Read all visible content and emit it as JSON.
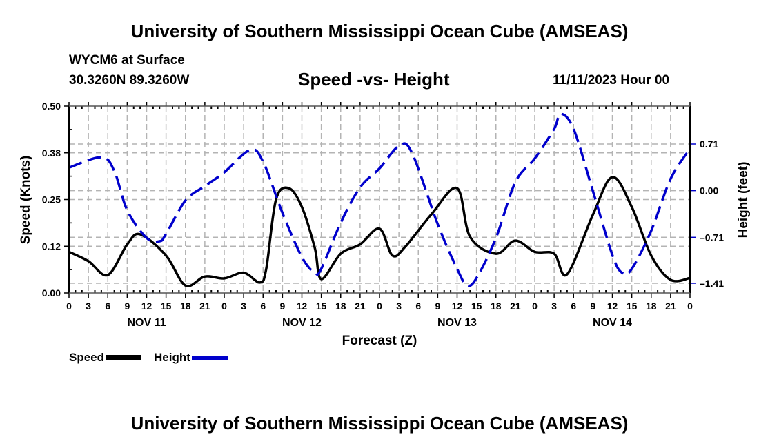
{
  "header": {
    "main_title": "University of Southern Mississippi Ocean Cube (AMSEAS)",
    "station": "WYCM6 at Surface",
    "coords": "30.3260N  89.3260W",
    "subtitle": "Speed -vs- Height",
    "datetime": "11/11/2023 Hour 00"
  },
  "footer": {
    "title": "University of Southern Mississippi Ocean Cube (AMSEAS)"
  },
  "legend": {
    "items": [
      {
        "label": "Speed",
        "color": "#000000",
        "style": "solid"
      },
      {
        "label": "Height",
        "color": "#0000cc",
        "style": "dashed"
      }
    ]
  },
  "chart_data": {
    "type": "line",
    "title": "Speed -vs- Height",
    "xlabel": "Forecast (Z)",
    "ylabel": "Speed (Knots)",
    "y2label": "Height (feet)",
    "xlim": [
      0,
      96
    ],
    "ylim": [
      0,
      0.5
    ],
    "y2lim": [
      -1.41,
      0.71
    ],
    "grid": true,
    "legend_position": "bottom-left",
    "x_tick_labels": [
      "0",
      "3",
      "6",
      "9",
      "12",
      "15",
      "18",
      "21",
      "0",
      "3",
      "6",
      "9",
      "12",
      "15",
      "18",
      "21",
      "0",
      "3",
      "6",
      "9",
      "12",
      "15",
      "18",
      "21",
      "0",
      "3",
      "6",
      "9",
      "12",
      "15",
      "18",
      "21",
      "0"
    ],
    "day_labels": [
      {
        "label": "NOV 11",
        "hour": 12
      },
      {
        "label": "NOV 12",
        "hour": 36
      },
      {
        "label": "NOV 13",
        "hour": 60
      },
      {
        "label": "NOV 14",
        "hour": 84
      }
    ],
    "y_tick_labels": [
      "0.00",
      "0.12",
      "0.25",
      "0.38",
      "0.50"
    ],
    "y_ticks": [
      0,
      0.125,
      0.25,
      0.375,
      0.5
    ],
    "y2_tick_labels": [
      "-1.41",
      "-0.71",
      "0.00",
      "0.71"
    ],
    "y2_ticks": [
      -1.41,
      -0.71,
      0.0,
      0.71
    ],
    "series": [
      {
        "name": "Speed",
        "axis": "left",
        "color": "#000000",
        "x": [
          0,
          3,
          6,
          9,
          11,
          15,
          18,
          21,
          24,
          27,
          29.5,
          30.5,
          32,
          34,
          36,
          38,
          39,
          42,
          45,
          48,
          50,
          52,
          56,
          60,
          62,
          66,
          69,
          72,
          75,
          77,
          81,
          84,
          87,
          90,
          93,
          96
        ],
        "values": [
          0.11,
          0.085,
          0.048,
          0.13,
          0.157,
          0.1,
          0.02,
          0.044,
          0.039,
          0.054,
          0.028,
          0.065,
          0.25,
          0.28,
          0.23,
          0.12,
          0.037,
          0.105,
          0.13,
          0.172,
          0.1,
          0.124,
          0.21,
          0.28,
          0.15,
          0.105,
          0.14,
          0.11,
          0.105,
          0.05,
          0.21,
          0.31,
          0.23,
          0.1,
          0.035,
          0.04
        ]
      },
      {
        "name": "Height",
        "axis": "right",
        "color": "#0000cc",
        "x": [
          0,
          5,
          7,
          9,
          12,
          14,
          15,
          18,
          21,
          24,
          28,
          30,
          33,
          36,
          38,
          39,
          42,
          45,
          48,
          51,
          53,
          57,
          60,
          61.5,
          63,
          66,
          69,
          72,
          75,
          76,
          78,
          81,
          84,
          85.5,
          87,
          90,
          93,
          96
        ],
        "values": [
          0.35,
          0.51,
          0.3,
          -0.3,
          -0.72,
          -0.77,
          -0.66,
          -0.15,
          0.07,
          0.28,
          0.62,
          0.44,
          -0.34,
          -1.01,
          -1.25,
          -1.19,
          -0.49,
          0.05,
          0.34,
          0.68,
          0.58,
          -0.51,
          -1.19,
          -1.44,
          -1.33,
          -0.72,
          0.13,
          0.49,
          0.94,
          1.17,
          0.94,
          -0.01,
          -0.98,
          -1.25,
          -1.19,
          -0.61,
          0.18,
          0.64
        ]
      }
    ]
  }
}
